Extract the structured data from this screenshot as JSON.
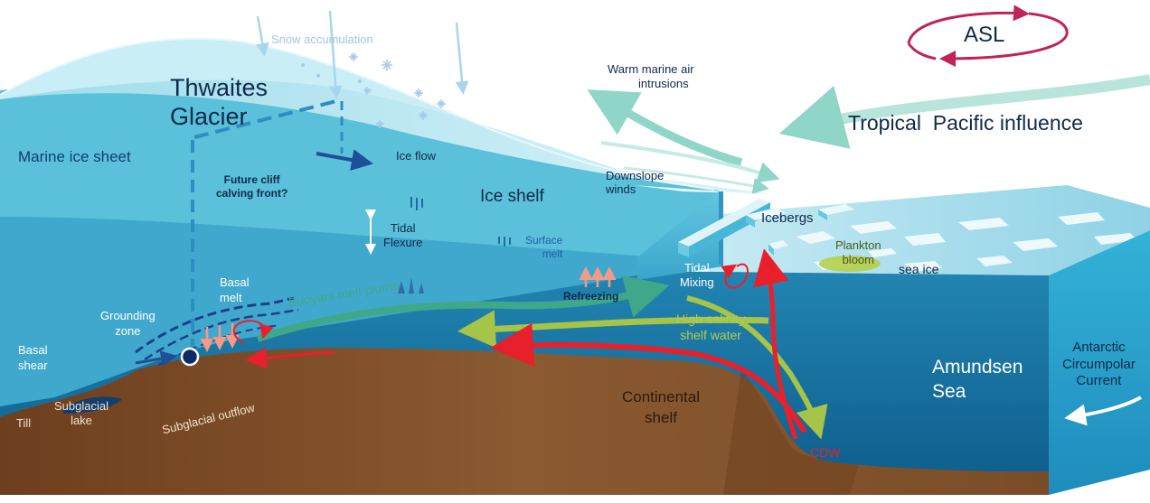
{
  "labels": {
    "snow_accumulation": "Snow accumulation",
    "thwaites_glacier_line1": "Thwaites",
    "thwaites_glacier_line2": "Glacier",
    "warm_marine_air_line1": "Warm marine air",
    "warm_marine_air_line2": "intrusions",
    "asl": "ASL",
    "tropical_pacific": "Tropical  Pacific influence",
    "marine_ice_sheet": "Marine ice sheet",
    "ice_flow": "Ice flow",
    "future_cliff_line1": "Future cliff",
    "future_cliff_line2": "calving front?",
    "ice_shelf": "Ice shelf",
    "downslope_line1": "Downslope",
    "downslope_line2": "winds",
    "icebergs": "Icebergs",
    "tidal_flexure_line1": "Tidal",
    "tidal_flexure_line2": "Flexure",
    "surface_melt_line1": "Surface",
    "surface_melt_line2": "melt",
    "plankton_line1": "Plankton",
    "plankton_line2": "bloom",
    "sea_ice": "sea ice",
    "basal_melt_line1": "Basal",
    "basal_melt_line2": "melt",
    "tidal_mixing_line1": "Tidal",
    "tidal_mixing_line2": "Mixing",
    "refreezing": "Refreezing",
    "grounding_line1": "Grounding",
    "grounding_line2": "zone",
    "buoyant_plume": "Buoyant melt plume",
    "high_salinity_line1": "High-salinity",
    "high_salinity_line2": "shelf water",
    "basal_shear_line1": "Basal",
    "basal_shear_line2": "shear",
    "amundsen_line1": "Amundsen",
    "amundsen_line2": "Sea",
    "acc_line1": "Antarctic",
    "acc_line2": "Circumpolar",
    "acc_line3": "Current",
    "continental_line1": "Continental",
    "continental_line2": "shelf",
    "subglacial_outflow": "Subglacial outflow",
    "subglacial_lake_line1": "Subglacial",
    "subglacial_lake_line2": "lake",
    "till": "Till",
    "cdw": "CDW"
  },
  "colors": {
    "ice_surface": "#bfeaf3",
    "ice_front": "#56c2dc",
    "ocean_deep": "#1a7aa7",
    "ocean_front": "#28a8d0",
    "bedrock": "#7a4a26",
    "cdw_red": "#e8202c",
    "salinity_green": "#a6c447",
    "plume_teal": "#3fa88a",
    "asl_magenta": "#c02357",
    "label_dark": "#0f2a4a"
  }
}
